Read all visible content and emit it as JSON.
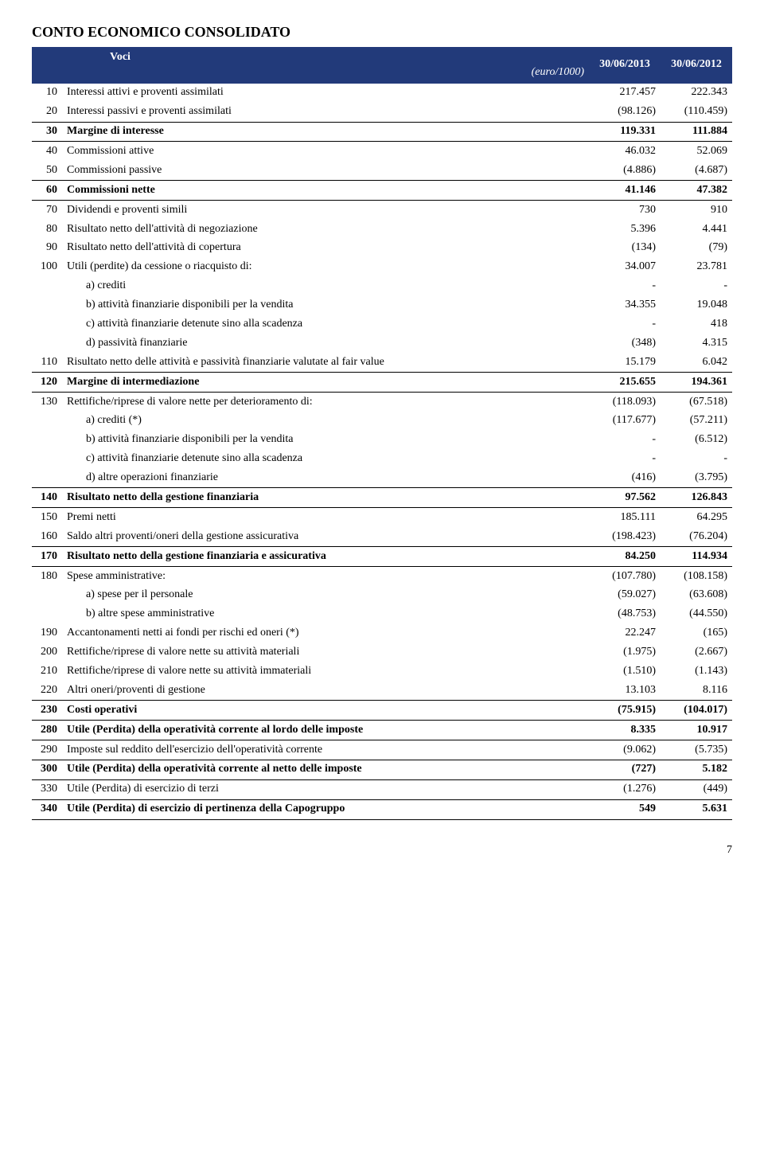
{
  "title": "CONTO  ECONOMICO CONSOLIDATO",
  "header": {
    "voci": "Voci",
    "euro": "(euro/1000)",
    "col1": "30/06/2013",
    "col2": "30/06/2012"
  },
  "rows": [
    {
      "code": "10",
      "label": "Interessi attivi e proventi assimilati",
      "v1": "217.457",
      "v2": "222.343"
    },
    {
      "code": "20",
      "label": "Interessi passivi e proventi assimilati",
      "v1": "(98.126)",
      "v2": "(110.459)"
    },
    {
      "code": "30",
      "label": "Margine di interesse",
      "v1": "119.331",
      "v2": "111.884",
      "bold": true,
      "tb": true,
      "bb": true
    },
    {
      "code": "40",
      "label": "Commissioni attive",
      "v1": "46.032",
      "v2": "52.069"
    },
    {
      "code": "50",
      "label": "Commissioni passive",
      "v1": "(4.886)",
      "v2": "(4.687)"
    },
    {
      "code": "60",
      "label": "Commissioni nette",
      "v1": "41.146",
      "v2": "47.382",
      "bold": true,
      "tb": true,
      "bb": true
    },
    {
      "code": "70",
      "label": "Dividendi e proventi simili",
      "v1": "730",
      "v2": "910"
    },
    {
      "code": "80",
      "label": "Risultato netto dell'attività di negoziazione",
      "v1": "5.396",
      "v2": "4.441"
    },
    {
      "code": "90",
      "label": "Risultato netto dell'attività di copertura",
      "v1": "(134)",
      "v2": "(79)"
    },
    {
      "code": "100",
      "label": "Utili (perdite) da cessione o riacquisto di:",
      "v1": "34.007",
      "v2": "23.781"
    },
    {
      "code": "",
      "label": "a) crediti",
      "v1": "-",
      "v2": "-",
      "indent": 1
    },
    {
      "code": "",
      "label": "b) attività finanziarie disponibili per la vendita",
      "v1": "34.355",
      "v2": "19.048",
      "indent": 1
    },
    {
      "code": "",
      "label": "c) attività finanziarie detenute sino alla scadenza",
      "v1": "-",
      "v2": "418",
      "indent": 1
    },
    {
      "code": "",
      "label": "d) passività finanziarie",
      "v1": "(348)",
      "v2": "4.315",
      "indent": 1
    },
    {
      "code": "110",
      "label": "Risultato netto delle attività e passività finanziarie valutate al fair value",
      "v1": "15.179",
      "v2": "6.042"
    },
    {
      "code": "120",
      "label": "Margine di intermediazione",
      "v1": "215.655",
      "v2": "194.361",
      "bold": true,
      "tb": true,
      "bb": true
    },
    {
      "code": "130",
      "label": "Rettifiche/riprese di valore nette per deterioramento di:",
      "v1": "(118.093)",
      "v2": "(67.518)"
    },
    {
      "code": "",
      "label": "a) crediti (*)",
      "v1": "(117.677)",
      "v2": "(57.211)",
      "indent": 1,
      "italic": true
    },
    {
      "code": "",
      "label": "b) attività finanziarie disponibili per la vendita",
      "v1": "-",
      "v2": "(6.512)",
      "indent": 1
    },
    {
      "code": "",
      "label": "c) attività finanziarie detenute sino alla scadenza",
      "v1": "-",
      "v2": "-",
      "indent": 1
    },
    {
      "code": "",
      "label": "d) altre operazioni finanziarie",
      "v1": "(416)",
      "v2": "(3.795)",
      "indent": 1
    },
    {
      "code": "140",
      "label": "Risultato netto della gestione finanziaria",
      "v1": "97.562",
      "v2": "126.843",
      "bold": true,
      "tb": true,
      "bb": true
    },
    {
      "code": "150",
      "label": "Premi netti",
      "v1": "185.111",
      "v2": "64.295"
    },
    {
      "code": "160",
      "label": "Saldo altri proventi/oneri della gestione assicurativa",
      "v1": "(198.423)",
      "v2": "(76.204)"
    },
    {
      "code": "170",
      "label": "Risultato netto della gestione finanziaria e assicurativa",
      "v1": "84.250",
      "v2": "114.934",
      "bold": true,
      "tb": true,
      "bb": true
    },
    {
      "code": "180",
      "label": "Spese amministrative:",
      "v1": "(107.780)",
      "v2": "(108.158)"
    },
    {
      "code": "",
      "label": "a) spese per il personale",
      "v1": "(59.027)",
      "v2": "(63.608)",
      "indent": 1
    },
    {
      "code": "",
      "label": "b) altre spese amministrative",
      "v1": "(48.753)",
      "v2": "(44.550)",
      "indent": 1
    },
    {
      "code": "190",
      "label": "Accantonamenti netti ai fondi per rischi ed oneri (*)",
      "v1": "22.247",
      "v2": "(165)",
      "italic": true
    },
    {
      "code": "200",
      "label": "Rettifiche/riprese di valore nette su attività materiali",
      "v1": "(1.975)",
      "v2": "(2.667)"
    },
    {
      "code": "210",
      "label": "Rettifiche/riprese di valore nette su attività immateriali",
      "v1": "(1.510)",
      "v2": "(1.143)"
    },
    {
      "code": "220",
      "label": "Altri oneri/proventi di gestione",
      "v1": "13.103",
      "v2": "8.116"
    },
    {
      "code": "230",
      "label": "Costi operativi",
      "v1": "(75.915)",
      "v2": "(104.017)",
      "bold": true,
      "tb": true,
      "bb": true
    },
    {
      "code": "280",
      "label": "Utile (Perdita) della operatività corrente al lordo delle imposte",
      "v1": "8.335",
      "v2": "10.917",
      "bold": true,
      "bb": true
    },
    {
      "code": "290",
      "label": "Imposte sul reddito dell'esercizio dell'operatività corrente",
      "v1": "(9.062)",
      "v2": "(5.735)"
    },
    {
      "code": "300",
      "label": "Utile (Perdita) della operatività corrente al netto delle imposte",
      "v1": "(727)",
      "v2": "5.182",
      "bold": true,
      "tb": true,
      "bb": true
    },
    {
      "code": "330",
      "label": "Utile (Perdita) di esercizio di terzi",
      "v1": "(1.276)",
      "v2": "(449)"
    },
    {
      "code": "340",
      "label": "Utile (Perdita) di esercizio di pertinenza della Capogruppo",
      "v1": "549",
      "v2": "5.631",
      "bold": true,
      "tb": true,
      "bb": true
    }
  ],
  "pageNumber": "7"
}
